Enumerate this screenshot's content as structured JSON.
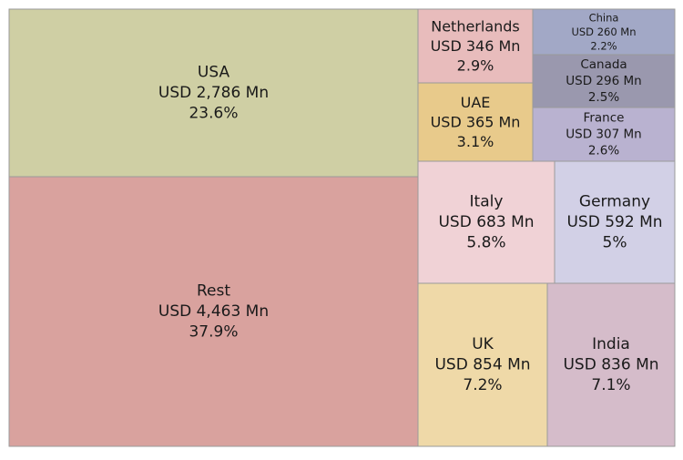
{
  "chart_data": {
    "type": "treemap",
    "items": [
      {
        "name": "Rest",
        "value_label": "USD 4,463 Mn",
        "pct_label": "37.9%",
        "value": 4463,
        "color": "#d9a29e"
      },
      {
        "name": "USA",
        "value_label": "USD 2,786 Mn",
        "pct_label": "23.6%",
        "value": 2786,
        "color": "#cfcfa4"
      },
      {
        "name": "UK",
        "value_label": "USD 854 Mn",
        "pct_label": "7.2%",
        "value": 854,
        "color": "#efd9a8"
      },
      {
        "name": "India",
        "value_label": "USD 836 Mn",
        "pct_label": "7.1%",
        "value": 836,
        "color": "#d5bcca"
      },
      {
        "name": "Italy",
        "value_label": "USD 683 Mn",
        "pct_label": "5.8%",
        "value": 683,
        "color": "#f0d2d6"
      },
      {
        "name": "Germany",
        "value_label": "USD 592 Mn",
        "pct_label": "5%",
        "value": 592,
        "color": "#d2d0e6"
      },
      {
        "name": "UAE",
        "value_label": "USD 365 Mn",
        "pct_label": "3.1%",
        "value": 365,
        "color": "#e8ca8b"
      },
      {
        "name": "Netherlands",
        "value_label": "USD 346 Mn",
        "pct_label": "2.9%",
        "value": 346,
        "color": "#e8bcbc"
      },
      {
        "name": "France",
        "value_label": "USD 307 Mn",
        "pct_label": "2.6%",
        "value": 307,
        "color": "#b9b2d0"
      },
      {
        "name": "Canada",
        "value_label": "USD 296 Mn",
        "pct_label": "2.5%",
        "value": 296,
        "color": "#9a98ae"
      },
      {
        "name": "China",
        "value_label": "USD 260 Mn",
        "pct_label": "2.2%",
        "value": 260,
        "color": "#a2a8c6"
      }
    ]
  }
}
